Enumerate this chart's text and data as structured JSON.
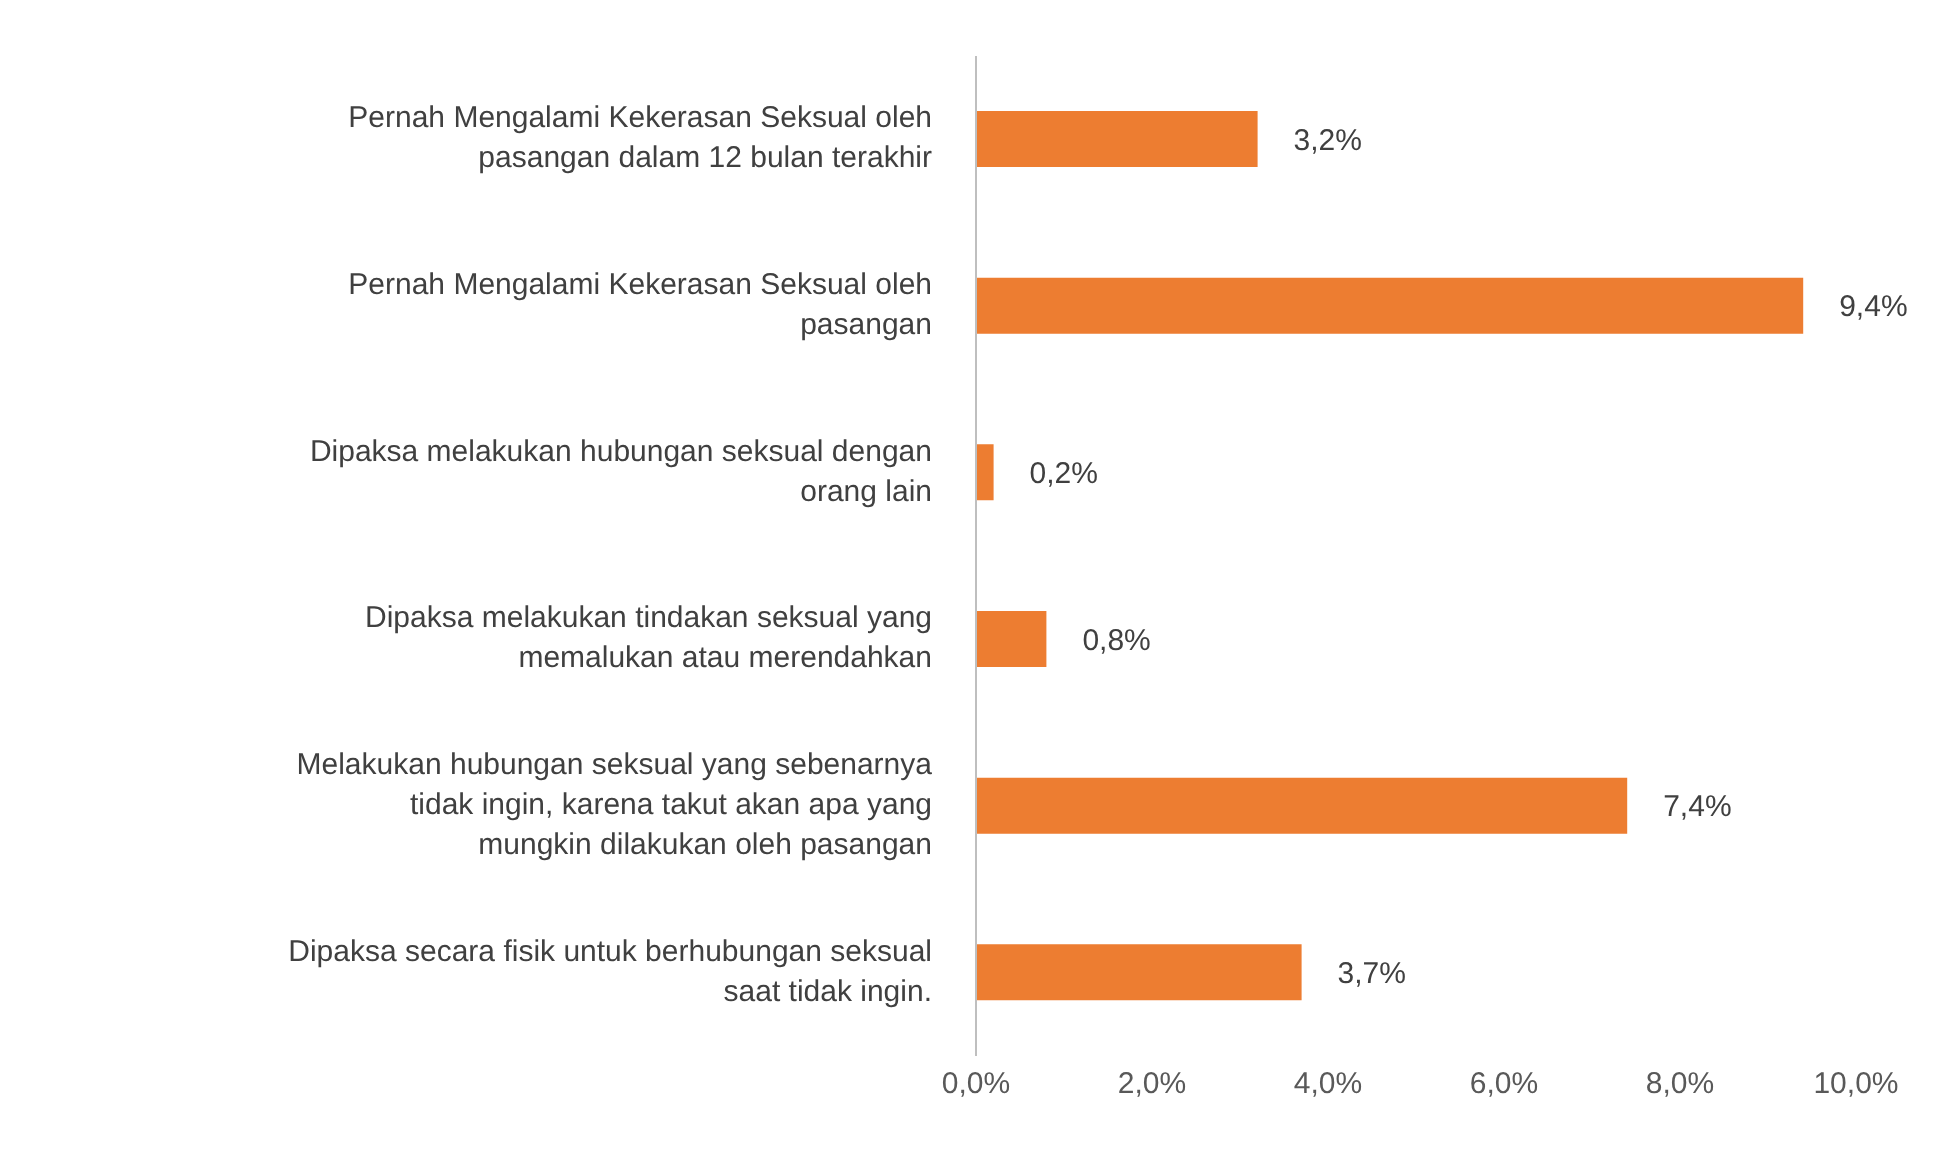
{
  "chart_data": {
    "type": "bar",
    "orientation": "horizontal",
    "categories": [
      "Pernah Mengalami Kekerasan Seksual oleh pasangan dalam 12 bulan terakhir",
      "Pernah Mengalami Kekerasan Seksual oleh pasangan",
      "Dipaksa melakukan hubungan seksual dengan orang lain",
      "Dipaksa melakukan tindakan seksual yang memalukan atau merendahkan",
      "Melakukan hubungan seksual yang sebenarnya tidak ingin, karena takut akan apa yang mungkin dilakukan oleh pasangan",
      "Dipaksa secara fisik untuk berhubungan seksual saat tidak ingin."
    ],
    "values": [
      3.2,
      9.4,
      0.2,
      0.8,
      7.4,
      3.7
    ],
    "value_labels": [
      "3,2%",
      "9,4%",
      "0,2%",
      "0,8%",
      "7,4%",
      "3,7%"
    ],
    "color": "#ed7d31",
    "xlim": [
      0,
      10
    ],
    "xticks": [
      {
        "value": 0,
        "label": "0,0%"
      },
      {
        "value": 2,
        "label": "2,0%"
      },
      {
        "value": 4,
        "label": "4,0%"
      },
      {
        "value": 6,
        "label": "6,0%"
      },
      {
        "value": 8,
        "label": "8,0%"
      },
      {
        "value": 10,
        "label": "10,0%"
      }
    ],
    "grid": false,
    "legend": false
  }
}
